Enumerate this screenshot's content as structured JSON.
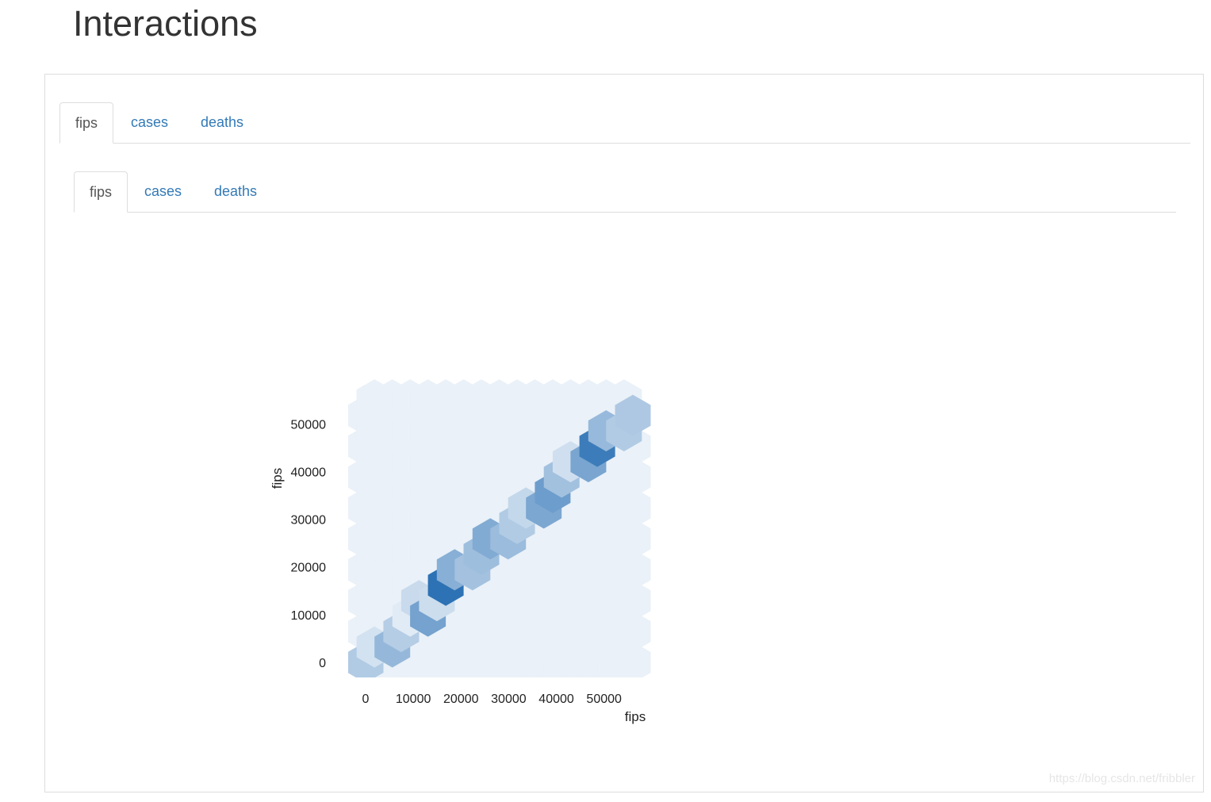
{
  "page": {
    "title": "Interactions"
  },
  "outer_tabs": [
    {
      "label": "fips",
      "active": true
    },
    {
      "label": "cases",
      "active": false
    },
    {
      "label": "deaths",
      "active": false
    }
  ],
  "inner_tabs": [
    {
      "label": "fips",
      "active": true
    },
    {
      "label": "cases",
      "active": false
    },
    {
      "label": "deaths",
      "active": false
    }
  ],
  "colors": {
    "link": "#337ab7",
    "hex_base": "#eaf1f8",
    "hex_max": "#2d72b5"
  },
  "chart_data": {
    "type": "heatmap",
    "subtype": "hexbin",
    "title": "",
    "xlabel": "fips",
    "ylabel": "fips",
    "xlim": [
      0,
      56045
    ],
    "ylim": [
      0,
      56045
    ],
    "x_ticks": [
      0,
      10000,
      20000,
      30000,
      40000,
      50000
    ],
    "y_ticks": [
      0,
      10000,
      20000,
      30000,
      40000,
      50000
    ],
    "grid": false,
    "legend": "none",
    "colormap": "Blues",
    "gridsize": 15,
    "bins": [
      {
        "x": 0,
        "y": 0,
        "intensity": 0.3
      },
      {
        "x": 1868,
        "y": 3236,
        "intensity": 0.12
      },
      {
        "x": 5604,
        "y": 3236,
        "intensity": 0.45
      },
      {
        "x": 7472,
        "y": 6473,
        "intensity": 0.28
      },
      {
        "x": 9340,
        "y": 9709,
        "intensity": 0.05
      },
      {
        "x": 11208,
        "y": 12946,
        "intensity": 0.18
      },
      {
        "x": 13077,
        "y": 9709,
        "intensity": 0.62
      },
      {
        "x": 14945,
        "y": 12946,
        "intensity": 0.16
      },
      {
        "x": 16813,
        "y": 16182,
        "intensity": 1.0
      },
      {
        "x": 18681,
        "y": 19418,
        "intensity": 0.52
      },
      {
        "x": 22417,
        "y": 19418,
        "intensity": 0.37
      },
      {
        "x": 24285,
        "y": 22655,
        "intensity": 0.4
      },
      {
        "x": 26153,
        "y": 25891,
        "intensity": 0.55
      },
      {
        "x": 29889,
        "y": 25891,
        "intensity": 0.42
      },
      {
        "x": 31757,
        "y": 29128,
        "intensity": 0.3
      },
      {
        "x": 33626,
        "y": 32364,
        "intensity": 0.2
      },
      {
        "x": 37362,
        "y": 32364,
        "intensity": 0.58
      },
      {
        "x": 39230,
        "y": 35600,
        "intensity": 0.66
      },
      {
        "x": 41098,
        "y": 38837,
        "intensity": 0.38
      },
      {
        "x": 42966,
        "y": 42073,
        "intensity": 0.14
      },
      {
        "x": 46702,
        "y": 42073,
        "intensity": 0.6
      },
      {
        "x": 48570,
        "y": 45310,
        "intensity": 0.92
      },
      {
        "x": 50438,
        "y": 48546,
        "intensity": 0.44
      },
      {
        "x": 54175,
        "y": 48546,
        "intensity": 0.3
      },
      {
        "x": 56043,
        "y": 51782,
        "intensity": 0.32
      }
    ]
  },
  "watermark": "https://blog.csdn.net/fribbler"
}
